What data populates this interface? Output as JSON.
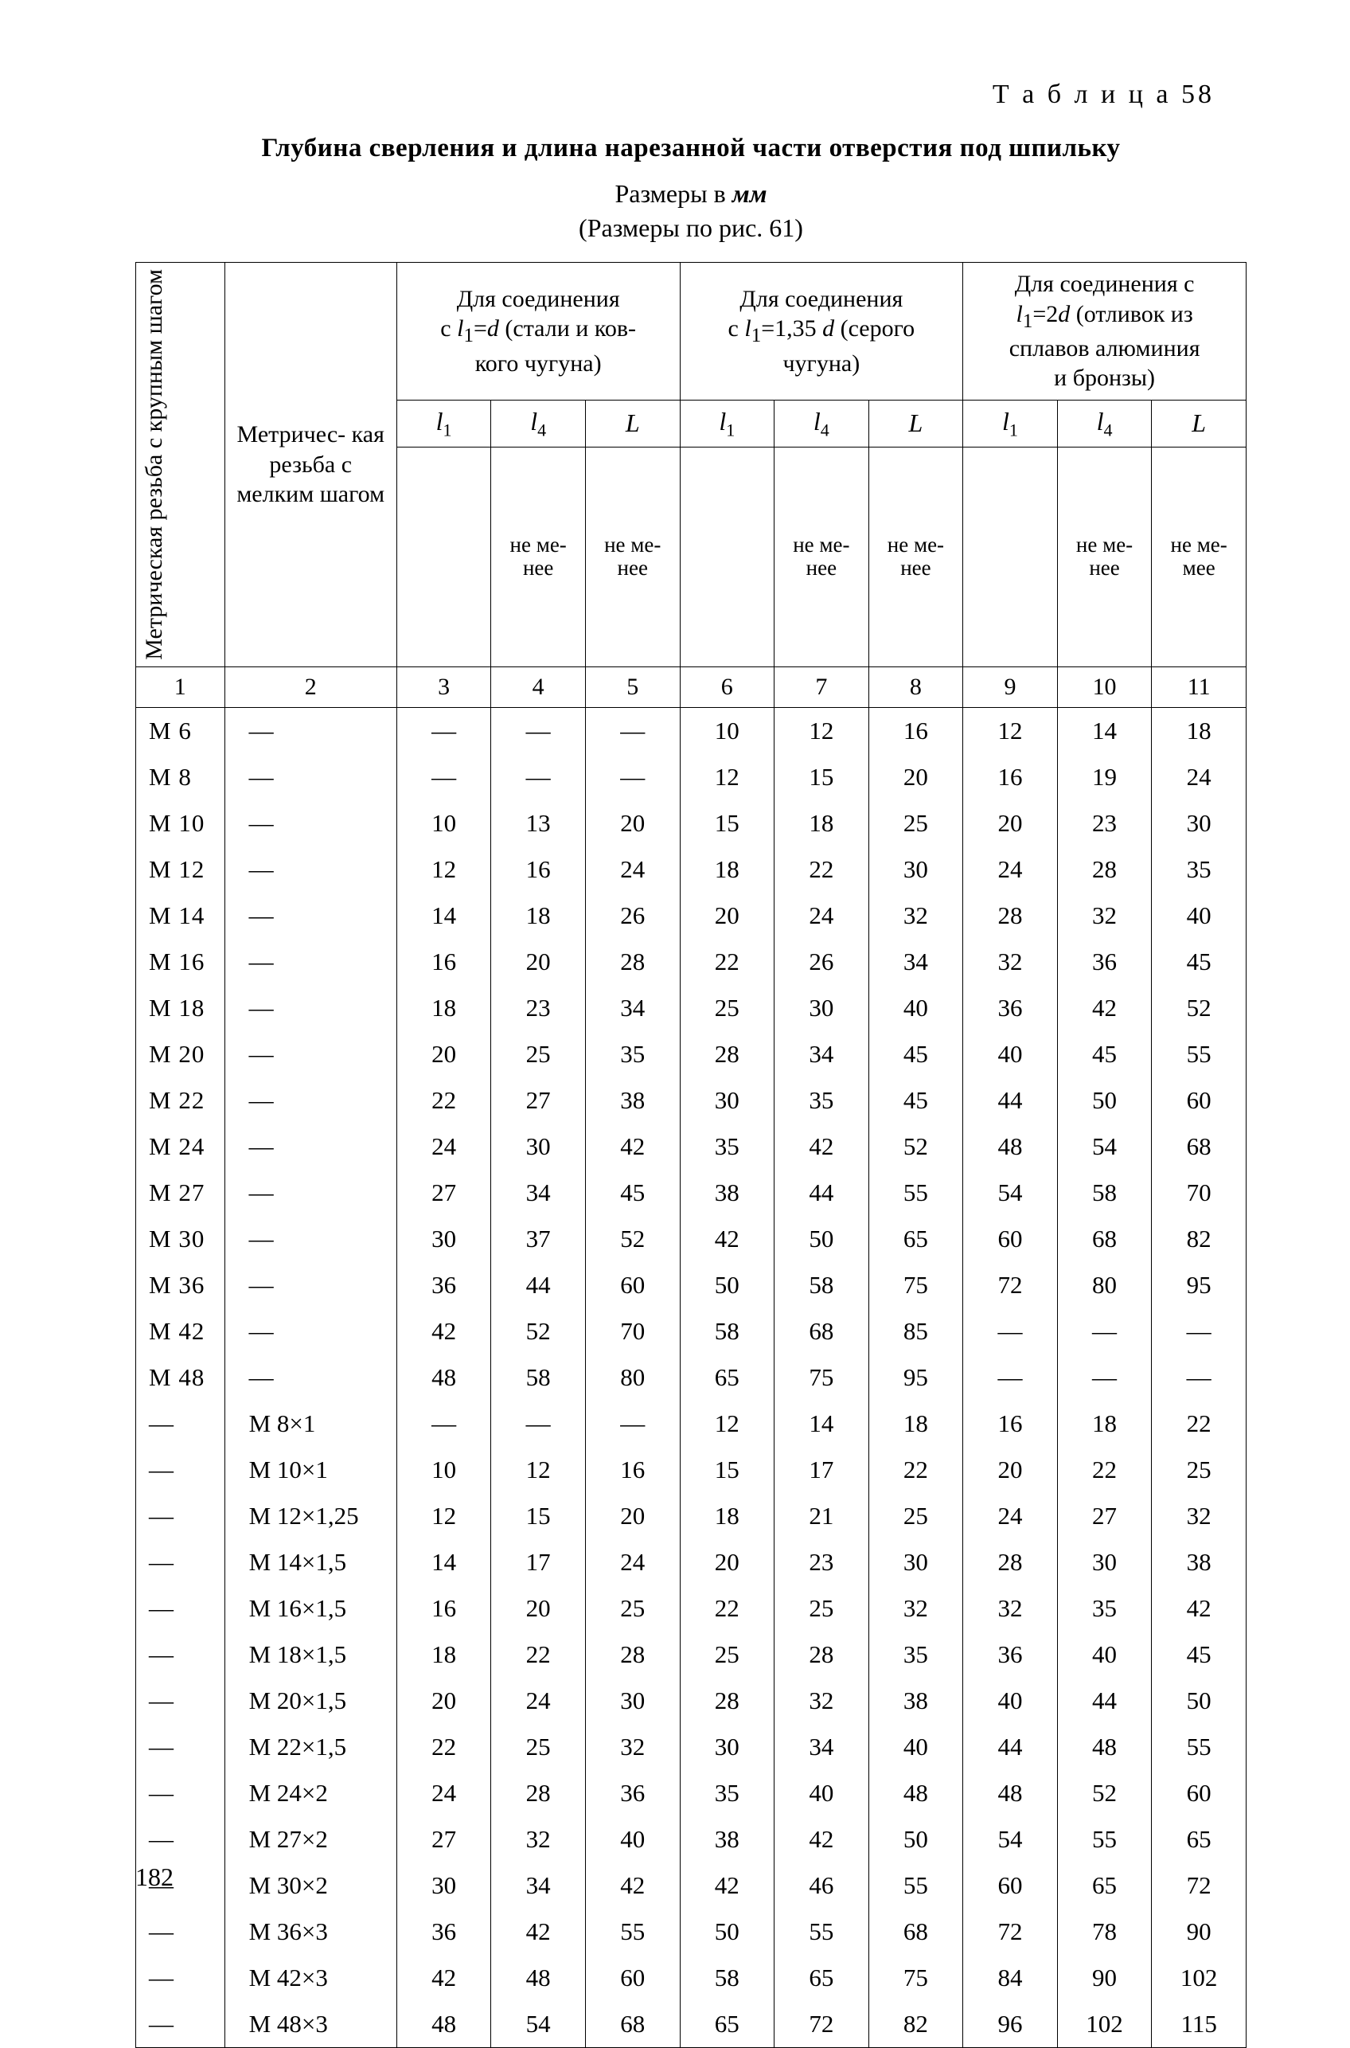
{
  "table_no": "Т а б л и ц а 58",
  "title": "Глубина сверления и длина нарезанной части отверстия под шпильку",
  "subtitle": "Размеры в мм",
  "subtitle2": "(Размеры по рис. 61)",
  "page_num": "182",
  "col_widths_pct": [
    8,
    15.5,
    8.5,
    8.5,
    8.5,
    8.5,
    8.5,
    8.5,
    8.5,
    8.5,
    8.5
  ],
  "head": {
    "rot1": "Метрическая резьба\nс крупным шагом",
    "col2": "Метричес-\nкая резьба\nс мелким\nшагом",
    "grp1": "Для соединения\nс l₁=d (стали и ков-\nкого чугуна)",
    "grp2": "Для соединения\nс l₁=1,35 d (серого\nчугуна)",
    "grp3": "Для соединения с\nl₁=2d (отливок из\nсплавов алюминия\nи бронзы)",
    "l1": "l₁",
    "l4": "l₄",
    "L": "L",
    "note": "не ме-\nнее",
    "note_alt": "не ме-\nмее",
    "nums": [
      "1",
      "2",
      "3",
      "4",
      "5",
      "6",
      "7",
      "8",
      "9",
      "10",
      "11"
    ]
  },
  "rows": [
    [
      "M 6",
      "—",
      "—",
      "—",
      "—",
      "10",
      "12",
      "16",
      "12",
      "14",
      "18"
    ],
    [
      "M 8",
      "—",
      "—",
      "—",
      "—",
      "12",
      "15",
      "20",
      "16",
      "19",
      "24"
    ],
    [
      "M 10",
      "—",
      "10",
      "13",
      "20",
      "15",
      "18",
      "25",
      "20",
      "23",
      "30"
    ],
    [
      "M 12",
      "—",
      "12",
      "16",
      "24",
      "18",
      "22",
      "30",
      "24",
      "28",
      "35"
    ],
    [
      "M 14",
      "—",
      "14",
      "18",
      "26",
      "20",
      "24",
      "32",
      "28",
      "32",
      "40"
    ],
    [
      "M 16",
      "—",
      "16",
      "20",
      "28",
      "22",
      "26",
      "34",
      "32",
      "36",
      "45"
    ],
    [
      "M 18",
      "—",
      "18",
      "23",
      "34",
      "25",
      "30",
      "40",
      "36",
      "42",
      "52"
    ],
    [
      "M 20",
      "—",
      "20",
      "25",
      "35",
      "28",
      "34",
      "45",
      "40",
      "45",
      "55"
    ],
    [
      "M 22",
      "—",
      "22",
      "27",
      "38",
      "30",
      "35",
      "45",
      "44",
      "50",
      "60"
    ],
    [
      "M 24",
      "—",
      "24",
      "30",
      "42",
      "35",
      "42",
      "52",
      "48",
      "54",
      "68"
    ],
    [
      "M 27",
      "—",
      "27",
      "34",
      "45",
      "38",
      "44",
      "55",
      "54",
      "58",
      "70"
    ],
    [
      "M 30",
      "—",
      "30",
      "37",
      "52",
      "42",
      "50",
      "65",
      "60",
      "68",
      "82"
    ],
    [
      "M 36",
      "—",
      "36",
      "44",
      "60",
      "50",
      "58",
      "75",
      "72",
      "80",
      "95"
    ],
    [
      "M 42",
      "—",
      "42",
      "52",
      "70",
      "58",
      "68",
      "85",
      "—",
      "—",
      "—"
    ],
    [
      "M 48",
      "—",
      "48",
      "58",
      "80",
      "65",
      "75",
      "95",
      "—",
      "—",
      "—"
    ],
    [
      "—",
      "M  8×1",
      "—",
      "—",
      "—",
      "12",
      "14",
      "18",
      "16",
      "18",
      "22"
    ],
    [
      "—",
      "M 10×1",
      "10",
      "12",
      "16",
      "15",
      "17",
      "22",
      "20",
      "22",
      "25"
    ],
    [
      "—",
      "M 12×1,25",
      "12",
      "15",
      "20",
      "18",
      "21",
      "25",
      "24",
      "27",
      "32"
    ],
    [
      "—",
      "M 14×1,5",
      "14",
      "17",
      "24",
      "20",
      "23",
      "30",
      "28",
      "30",
      "38"
    ],
    [
      "—",
      "M 16×1,5",
      "16",
      "20",
      "25",
      "22",
      "25",
      "32",
      "32",
      "35",
      "42"
    ],
    [
      "—",
      "M 18×1,5",
      "18",
      "22",
      "28",
      "25",
      "28",
      "35",
      "36",
      "40",
      "45"
    ],
    [
      "—",
      "M 20×1,5",
      "20",
      "24",
      "30",
      "28",
      "32",
      "38",
      "40",
      "44",
      "50"
    ],
    [
      "—",
      "M 22×1,5",
      "22",
      "25",
      "32",
      "30",
      "34",
      "40",
      "44",
      "48",
      "55"
    ],
    [
      "—",
      "M 24×2",
      "24",
      "28",
      "36",
      "35",
      "40",
      "48",
      "48",
      "52",
      "60"
    ],
    [
      "—",
      "M 27×2",
      "27",
      "32",
      "40",
      "38",
      "42",
      "50",
      "54",
      "55",
      "65"
    ],
    [
      "—",
      "M 30×2",
      "30",
      "34",
      "42",
      "42",
      "46",
      "55",
      "60",
      "65",
      "72"
    ],
    [
      "—",
      "M 36×3",
      "36",
      "42",
      "55",
      "50",
      "55",
      "68",
      "72",
      "78",
      "90"
    ],
    [
      "—",
      "M 42×3",
      "42",
      "48",
      "60",
      "58",
      "65",
      "75",
      "84",
      "90",
      "102"
    ],
    [
      "—",
      "M 48×3",
      "48",
      "54",
      "68",
      "65",
      "72",
      "82",
      "96",
      "102",
      "115"
    ]
  ]
}
